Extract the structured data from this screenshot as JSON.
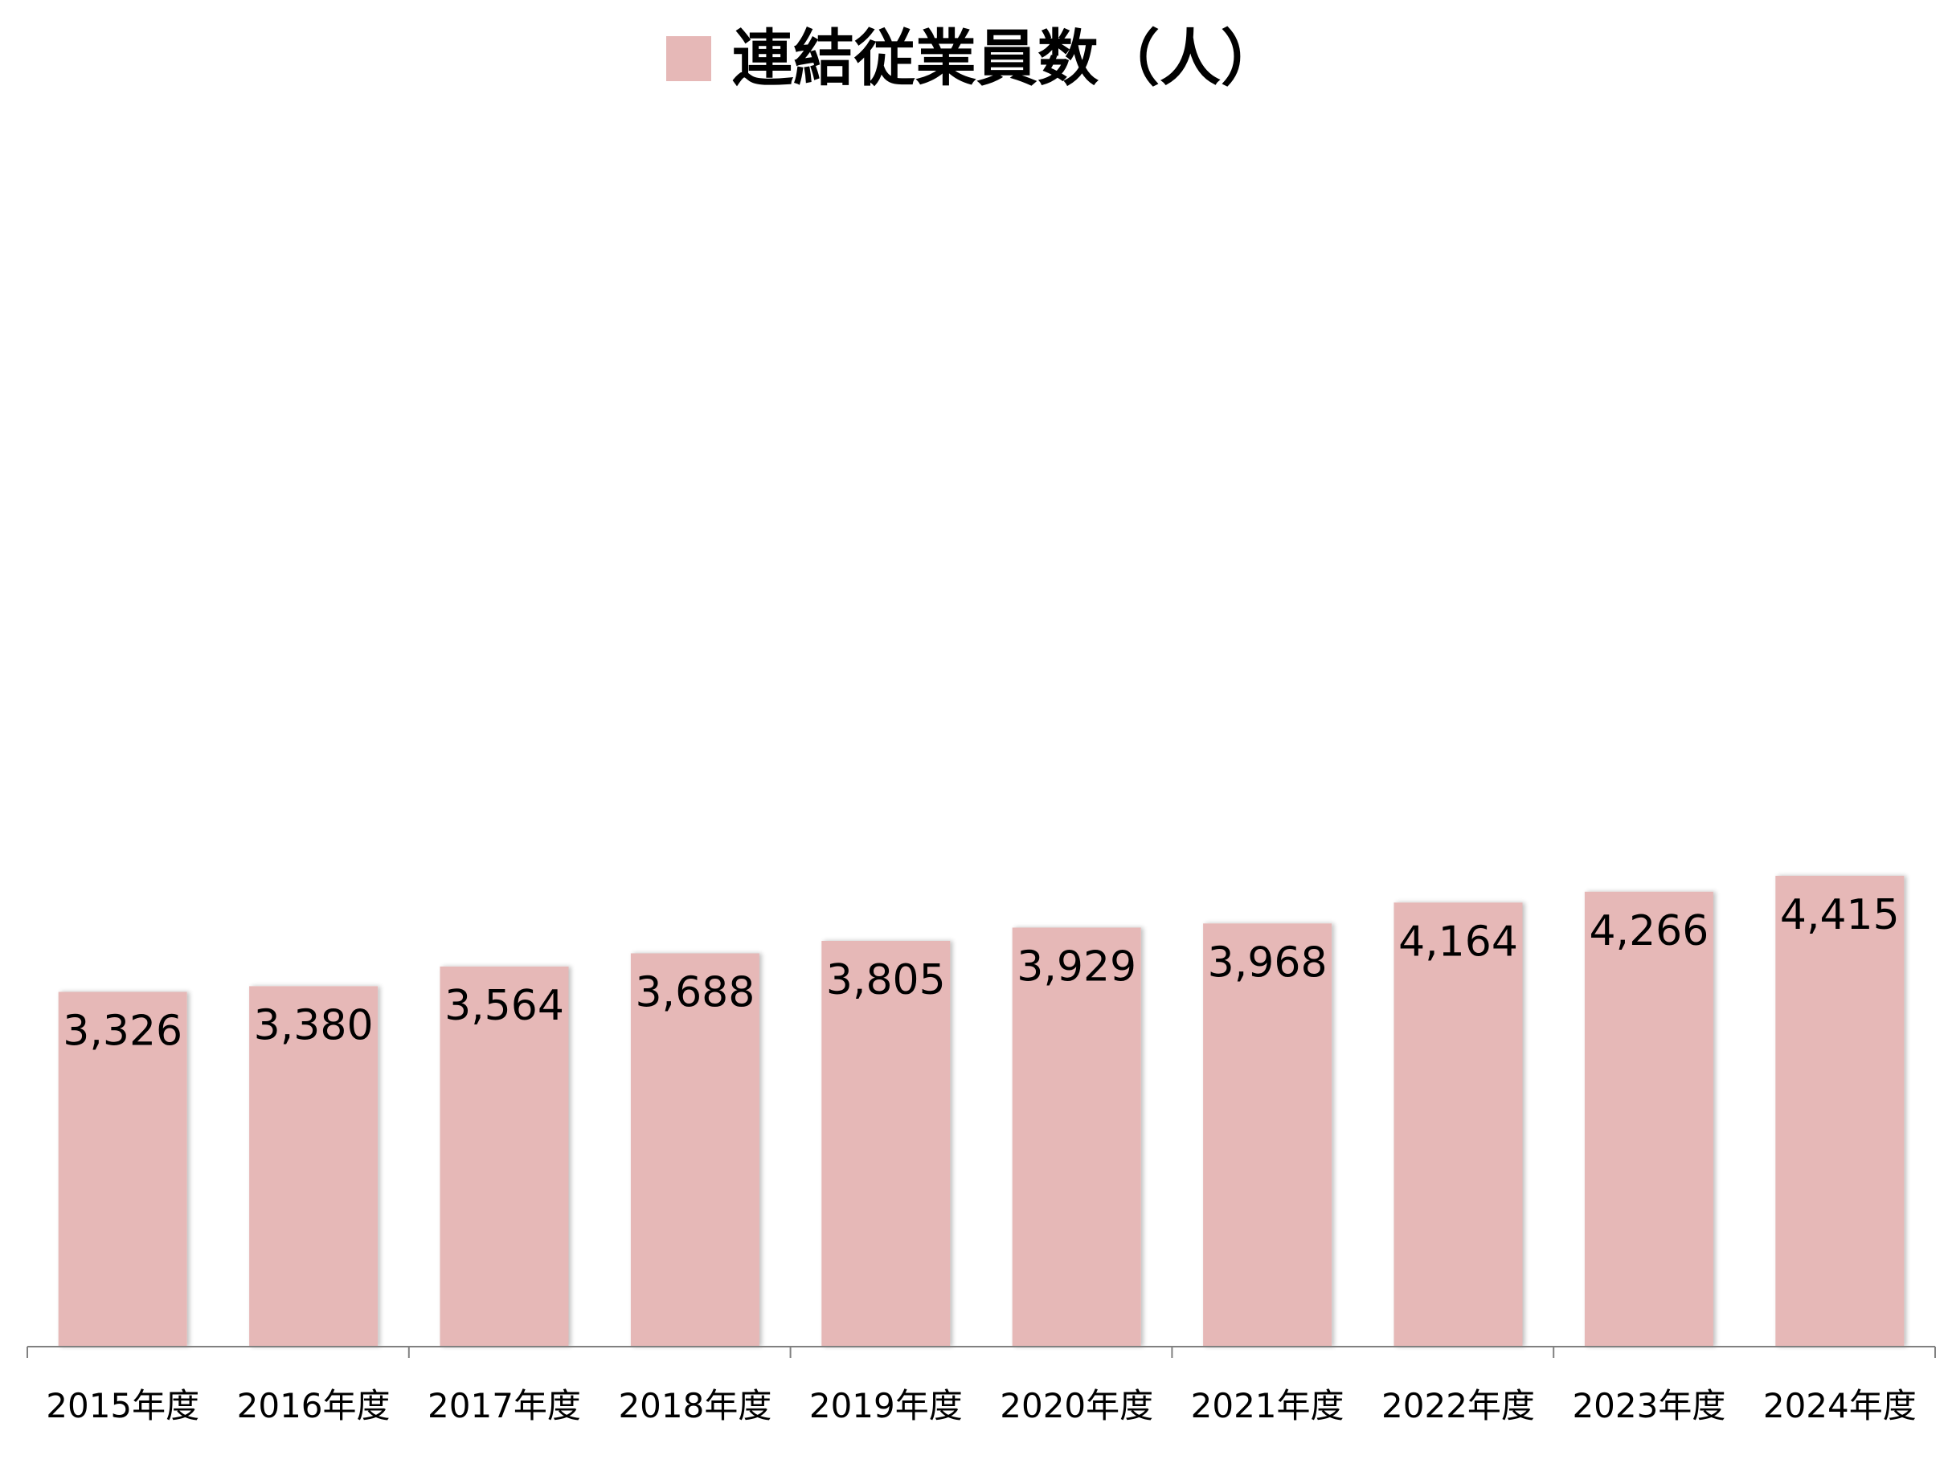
{
  "chart_data": {
    "type": "bar",
    "categories": [
      "2015年度",
      "2016年度",
      "2017年度",
      "2018年度",
      "2019年度",
      "2020年度",
      "2021年度",
      "2022年度",
      "2023年度",
      "2024年度"
    ],
    "series": [
      {
        "name": "連結従業員数（人）",
        "values": [
          3326,
          3380,
          3564,
          3688,
          3805,
          3929,
          3968,
          4164,
          4266,
          4415
        ],
        "labels": [
          "3,326",
          "3,380",
          "3,564",
          "3,688",
          "3,805",
          "3,929",
          "3,968",
          "4,164",
          "4,266",
          "4,415"
        ]
      }
    ],
    "ylim": [
      0,
      4600
    ],
    "grid": false,
    "legend": "top-center",
    "bar_color": "#e6b8b7",
    "axis_color": "#808080",
    "text_color": "#000000"
  }
}
